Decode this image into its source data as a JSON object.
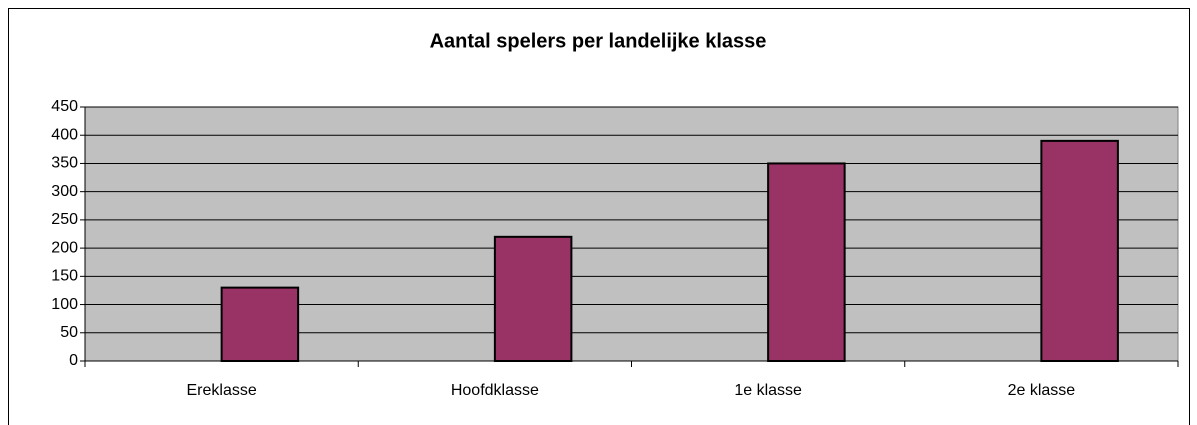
{
  "chart_data": {
    "type": "bar",
    "title": "Aantal spelers per landelijke klasse",
    "categories": [
      "Ereklasse",
      "Hoofdklasse",
      "1e klasse",
      "2e klasse"
    ],
    "values": [
      130,
      220,
      350,
      390
    ],
    "color": "#993366",
    "ylim": [
      0,
      450
    ],
    "yticks": [
      0,
      50,
      100,
      150,
      200,
      250,
      300,
      350,
      400,
      450
    ],
    "grid": true
  }
}
